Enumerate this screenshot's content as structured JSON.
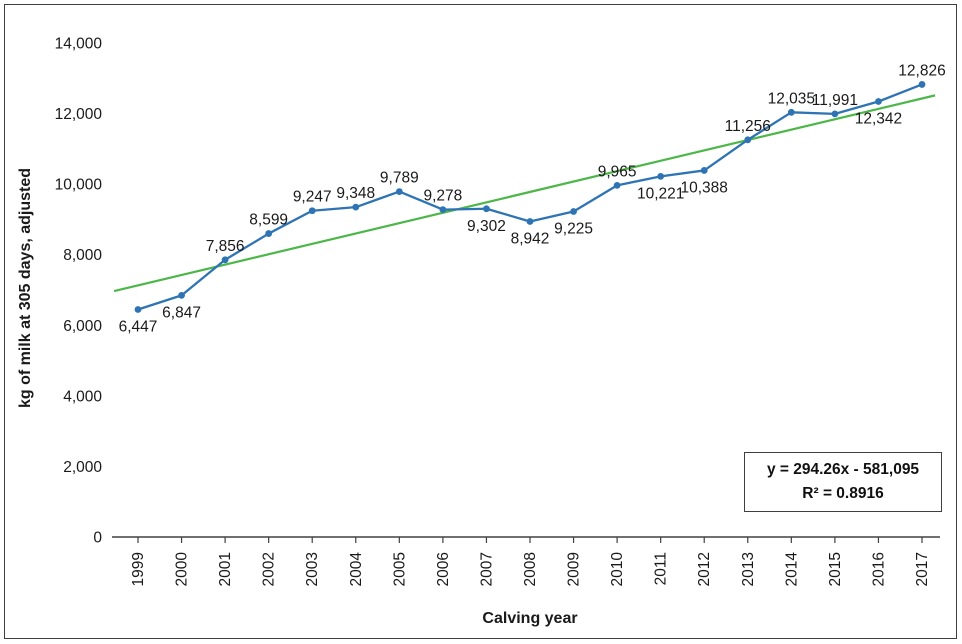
{
  "chart_data": {
    "type": "line",
    "title": "",
    "xlabel": "Calving year",
    "ylabel": "kg of milk at 305 days, adjusted",
    "x": [
      1999,
      2000,
      2001,
      2002,
      2003,
      2004,
      2005,
      2006,
      2007,
      2008,
      2009,
      2010,
      2011,
      2012,
      2013,
      2014,
      2015,
      2016,
      2017
    ],
    "series": [
      {
        "color": "#2e74b5",
        "values": [
          6447,
          6847,
          7856,
          8599,
          9247,
          9348,
          9789,
          9278,
          9302,
          8942,
          9225,
          9965,
          10221,
          10388,
          11256,
          12035,
          11991,
          12342,
          12826
        ]
      }
    ],
    "data_label_positions": [
      "below",
      "below",
      "above",
      "above",
      "above",
      "above",
      "above",
      "above",
      "below",
      "below",
      "below",
      "above",
      "below",
      "below",
      "above",
      "above",
      "above",
      "below",
      "above"
    ],
    "ylim": [
      0,
      14000
    ],
    "yticks": [
      0,
      2000,
      4000,
      6000,
      8000,
      10000,
      12000,
      14000
    ],
    "grid": false,
    "legend": "none",
    "line_style": "solid line with round markers",
    "trendline": {
      "slope": 294.26,
      "intercept": -581095,
      "color": "#4cb748",
      "equation_label": "y = 294.26x - 581,095",
      "r2_label": "R² = 0.8916"
    }
  }
}
